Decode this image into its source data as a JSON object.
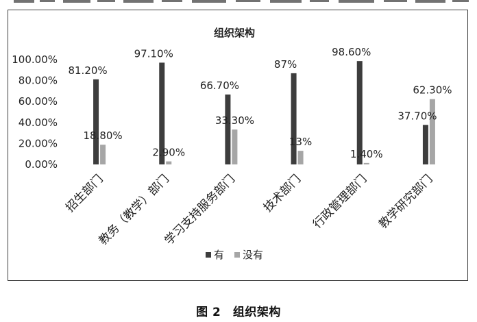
{
  "figure_caption": "图 2　组织架构",
  "chart_data": {
    "type": "bar",
    "title": "组织架构",
    "categories": [
      "招生部门",
      "教务（教学）部门",
      "学习支持服务部门",
      "技术部门",
      "行政管理部门",
      "教学研究部门"
    ],
    "series": [
      {
        "name": "有",
        "color": "#3d3d3d",
        "values": [
          81.2,
          97.1,
          66.7,
          87,
          98.6,
          37.7
        ],
        "labels": [
          "81.20%",
          "97.10%",
          "66.70%",
          "87%",
          "98.60%",
          "37.70%"
        ]
      },
      {
        "name": "没有",
        "color": "#a6a6a6",
        "values": [
          18.8,
          2.9,
          33.3,
          13,
          1.4,
          62.3
        ],
        "labels": [
          "18.80%",
          "2.90%",
          "33.30%",
          "13%",
          "1.40%",
          "62.30%"
        ]
      }
    ],
    "ylim": [
      0,
      100
    ],
    "y_ticks": [
      "0.00%",
      "20.00%",
      "40.00%",
      "60.00%",
      "80.00%",
      "100.00%"
    ],
    "y_tick_values": [
      0,
      20,
      40,
      60,
      80,
      100
    ],
    "legend_position": "bottom",
    "grid": false
  }
}
